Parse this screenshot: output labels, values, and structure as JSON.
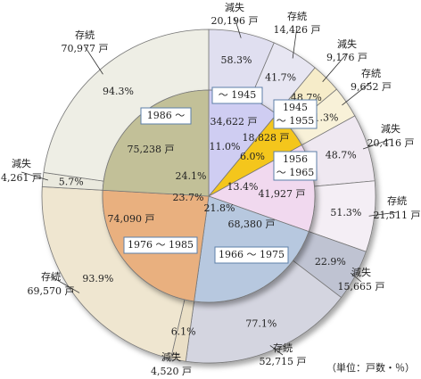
{
  "chart_data": {
    "type": "pie",
    "unit_note": "（単位：戸数・％）",
    "inner": {
      "slices": [
        {
          "period": "～ 1945",
          "households": "34,622 戸",
          "share": "11.0%",
          "value": 11.0,
          "color": "#cfcdf2"
        },
        {
          "period": "1945\n～ 1955",
          "households": "18,828 戸",
          "share": "6.0%",
          "value": 6.0,
          "color": "#f4c61a"
        },
        {
          "period": "1956\n～ 1965",
          "households": "41,927 戸",
          "share": "13.4%",
          "value": 13.4,
          "color": "#f1d9ef"
        },
        {
          "period": "1966 ～ 1975",
          "households": "68,380 戸",
          "share": "21.8%",
          "value": 21.8,
          "color": "#b7c8df"
        },
        {
          "period": "1976 ～ 1985",
          "households": "74,090 戸",
          "share": "23.7%",
          "value": 23.7,
          "color": "#e9b07f"
        },
        {
          "period": "1986 ～",
          "households": "75,238 戸",
          "share": "24.1%",
          "value": 24.1,
          "color": "#c2c098"
        }
      ]
    },
    "outer": {
      "slices": [
        {
          "status": "減失",
          "households": "20,196 戸",
          "pct": "58.3%",
          "value": 6.41,
          "color": "#e0dff0"
        },
        {
          "status": "存続",
          "households": "14,426 戸",
          "pct": "41.7%",
          "value": 4.59,
          "color": "#e7e6f2"
        },
        {
          "status": "減失",
          "households": "9,176 戸",
          "pct": "48.7%",
          "value": 2.92,
          "color": "#f6ecc9"
        },
        {
          "status": "存続",
          "households": "9,652 戸",
          "pct": "51.3%",
          "value": 3.08,
          "color": "#f8f1d8"
        },
        {
          "status": "減失",
          "households": "20,416 戸",
          "pct": "48.7%",
          "value": 6.53,
          "color": "#efe8f1"
        },
        {
          "status": "存続",
          "households": "21,511 戸",
          "pct": "51.3%",
          "value": 6.87,
          "color": "#f4eef5"
        },
        {
          "status": "減失",
          "households": "15,665 戸",
          "pct": "22.9%",
          "value": 4.99,
          "color": "#bfc3d2"
        },
        {
          "status": "存続",
          "households": "52,715 戸",
          "pct": "77.1%",
          "value": 16.81,
          "color": "#d4d5e0"
        },
        {
          "status": "減失",
          "households": "4,520 戸",
          "pct": "6.1%",
          "value": 1.45,
          "color": "#eadfc6"
        },
        {
          "status": "存続",
          "households": "69,570 戸",
          "pct": "93.9%",
          "value": 22.25,
          "color": "#efe6d0"
        },
        {
          "status": "減失",
          "households": "4,261 戸",
          "pct": "5.7%",
          "value": 1.37,
          "color": "#eae9de"
        },
        {
          "status": "存続",
          "households": "70,977 戸",
          "pct": "94.3%",
          "value": 22.73,
          "color": "#eeeee5"
        }
      ]
    }
  }
}
